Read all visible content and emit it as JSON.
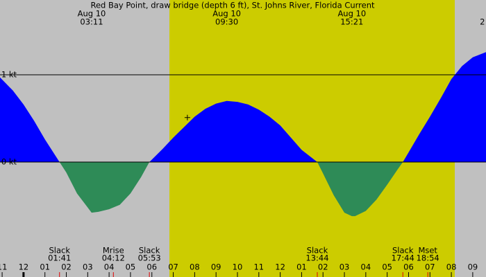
{
  "chart_data": {
    "type": "area",
    "title": "Red Bay Point, draw bridge (depth 6 ft), St. Johns River, Florida Current",
    "xlim": [
      -1.1,
      21.62
    ],
    "ylim": [
      -1.317,
      1.857
    ],
    "xticks": [
      {
        "value": -1,
        "label": "11"
      },
      {
        "value": 0,
        "label": "12"
      },
      {
        "value": 1,
        "label": "01"
      },
      {
        "value": 2,
        "label": "02"
      },
      {
        "value": 3,
        "label": "03"
      },
      {
        "value": 4,
        "label": "04"
      },
      {
        "value": 5,
        "label": "05"
      },
      {
        "value": 6,
        "label": "06"
      },
      {
        "value": 7,
        "label": "07"
      },
      {
        "value": 8,
        "label": "08"
      },
      {
        "value": 9,
        "label": "09"
      },
      {
        "value": 10,
        "label": "10"
      },
      {
        "value": 11,
        "label": "11"
      },
      {
        "value": 12,
        "label": "12"
      },
      {
        "value": 13,
        "label": "01"
      },
      {
        "value": 14,
        "label": "02"
      },
      {
        "value": 15,
        "label": "03"
      },
      {
        "value": 16,
        "label": "04"
      },
      {
        "value": 17,
        "label": "05"
      },
      {
        "value": 18,
        "label": "06"
      },
      {
        "value": 19,
        "label": "07"
      },
      {
        "value": 20,
        "label": "08"
      },
      {
        "value": 21,
        "label": "09"
      }
    ],
    "yticks": [
      {
        "value": 0,
        "label": "0 kt"
      },
      {
        "value": 1,
        "label": "1 kt"
      }
    ],
    "daylight": [
      6.82,
      20.16
    ],
    "x": [
      -1.1,
      -0.5,
      0,
      0.5,
      1.0,
      1.683,
      2.0,
      2.5,
      3.183,
      3.5,
      4.0,
      4.5,
      5.0,
      5.5,
      5.883,
      6.5,
      7.0,
      7.5,
      8.0,
      8.5,
      9.0,
      9.5,
      10.0,
      10.5,
      11.0,
      11.5,
      12.0,
      12.5,
      13.0,
      13.733,
      14.0,
      14.5,
      15.0,
      15.35,
      15.5,
      16.0,
      16.5,
      17.0,
      17.5,
      17.733,
      18.0,
      18.5,
      19.0,
      19.5,
      20.0,
      20.5,
      21.0,
      21.62
    ],
    "series": [
      {
        "color_flood": "#0000ff",
        "color_ebb": "#2e8b57",
        "values": [
          0.97,
          0.82,
          0.66,
          0.47,
          0.26,
          0,
          -0.12,
          -0.36,
          -0.58,
          -0.57,
          -0.54,
          -0.49,
          -0.36,
          -0.17,
          0,
          0.15,
          0.28,
          0.4,
          0.52,
          0.61,
          0.67,
          0.7,
          0.69,
          0.66,
          0.6,
          0.52,
          0.42,
          0.28,
          0.14,
          0,
          -0.13,
          -0.38,
          -0.58,
          -0.62,
          -0.62,
          -0.56,
          -0.43,
          -0.26,
          -0.08,
          0,
          0.11,
          0.32,
          0.52,
          0.73,
          0.95,
          1.1,
          1.2,
          1.26
        ]
      }
    ],
    "marker": {
      "x": 7.66,
      "y": 0.51
    },
    "top_labels": [
      {
        "date": "Aug 10",
        "time": "03:11",
        "x": 3.183
      },
      {
        "date": "Aug 10",
        "time": "09:30",
        "x": 9.5
      },
      {
        "date": "Aug 10",
        "time": "15:21",
        "x": 15.35
      },
      {
        "time": "2",
        "x": 21.45
      }
    ],
    "events": [
      {
        "name": "Slack",
        "time": "01:41",
        "x": 1.683
      },
      {
        "name": "Mrise",
        "time": "04:12",
        "x": 4.2
      },
      {
        "name": "Slack",
        "time": "05:53",
        "x": 5.883
      },
      {
        "name": "Slack",
        "time": "13:44",
        "x": 13.733
      },
      {
        "name": "Slack",
        "time": "17:44",
        "x": 17.733
      },
      {
        "name": "Mset",
        "time": "18:54",
        "x": 18.9
      }
    ]
  }
}
